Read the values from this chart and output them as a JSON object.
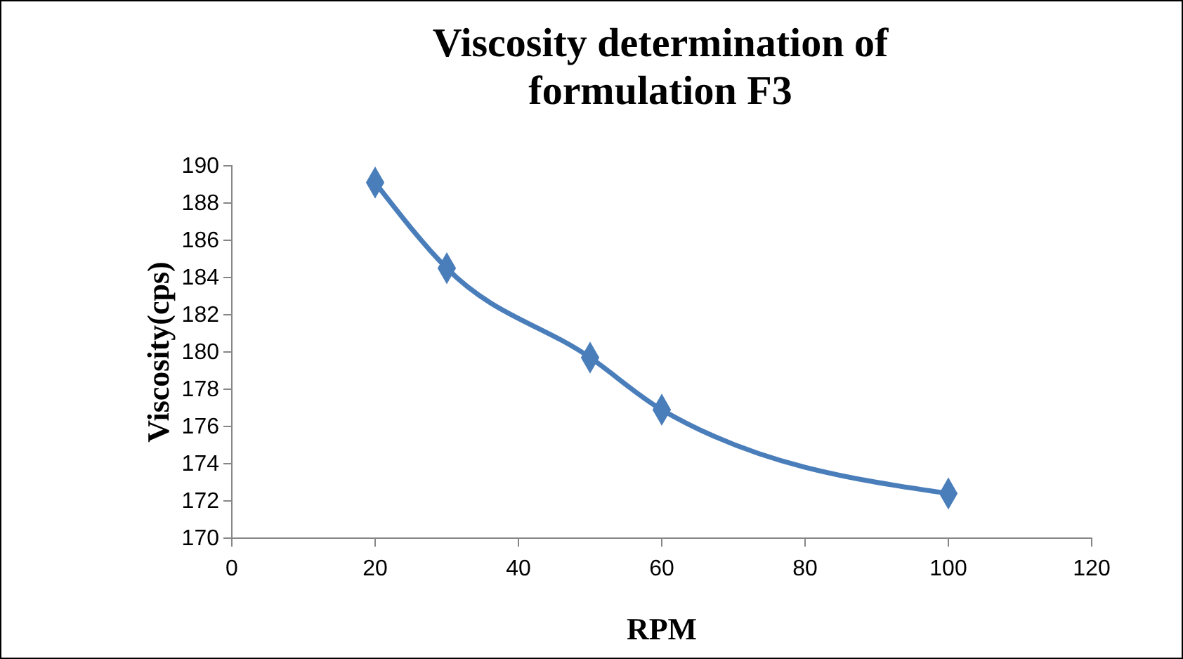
{
  "chart_data": {
    "type": "line",
    "title": "Viscosity determination of formulation F3",
    "xlabel": "RPM",
    "ylabel": "Viscosity(cps)",
    "x": [
      20,
      30,
      50,
      60,
      100
    ],
    "series": [
      {
        "color": "#4a7ebb",
        "values": [
          189.1,
          184.5,
          179.7,
          176.9,
          172.4
        ]
      }
    ],
    "xlim": [
      0,
      120
    ],
    "xticks": [
      0,
      20,
      40,
      60,
      80,
      100,
      120
    ],
    "ylim": [
      170,
      190
    ],
    "yticks": [
      170,
      172,
      174,
      176,
      178,
      180,
      182,
      184,
      186,
      188,
      190
    ],
    "grid": false,
    "marker": "diamond",
    "line_style": "solid"
  }
}
